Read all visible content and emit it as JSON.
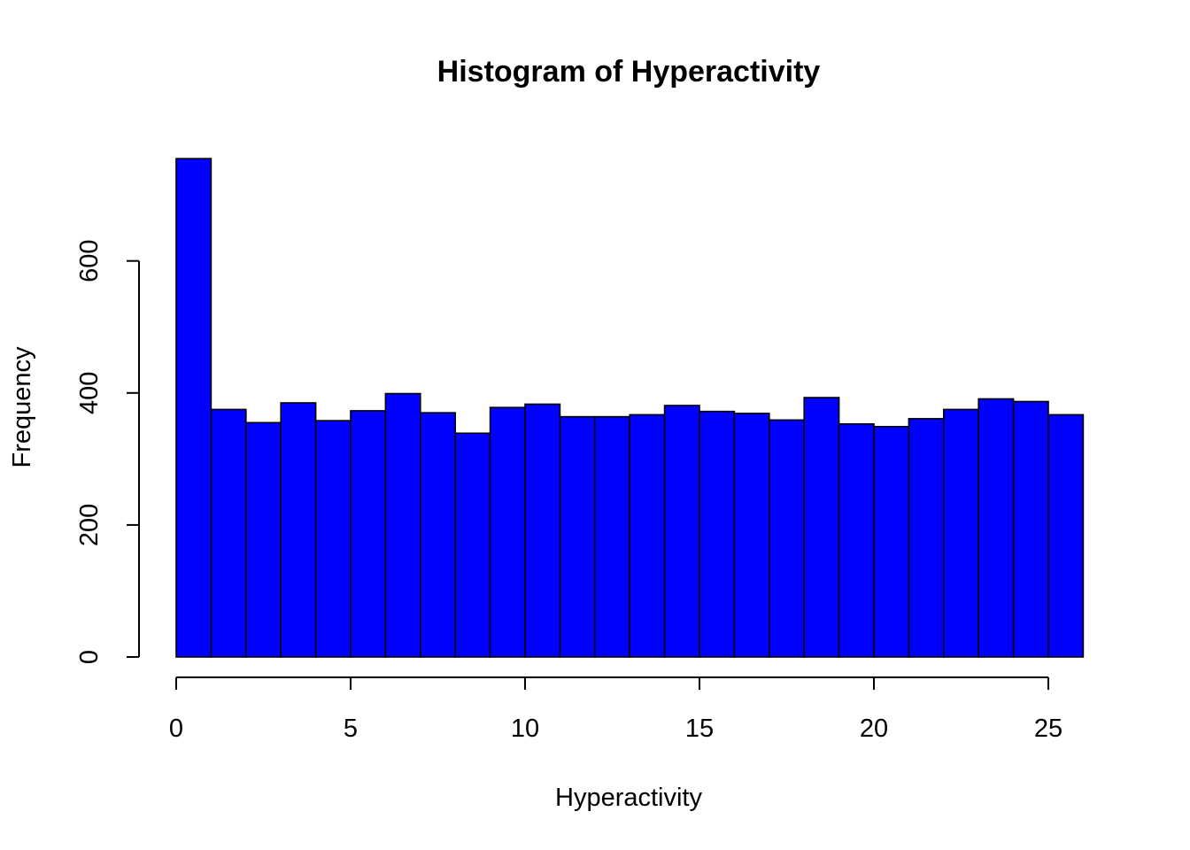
{
  "chart_data": {
    "type": "bar",
    "title": "Histogram of Hyperactivity",
    "xlabel": "Hyperactivity",
    "ylabel": "Frequency",
    "bar_color": "#0000ff",
    "bin_edges": [
      0,
      1,
      2,
      3,
      4,
      5,
      6,
      7,
      8,
      9,
      10,
      11,
      12,
      13,
      14,
      15,
      16,
      17,
      18,
      19,
      20,
      21,
      22,
      23,
      24,
      25,
      26
    ],
    "values": [
      755,
      375,
      355,
      385,
      358,
      373,
      399,
      370,
      339,
      378,
      383,
      364,
      364,
      367,
      381,
      372,
      369,
      359,
      393,
      353,
      349,
      361,
      375,
      391,
      387,
      367
    ],
    "xlim": [
      0,
      26
    ],
    "ylim": [
      0,
      755
    ],
    "x_ticks": [
      0,
      5,
      10,
      15,
      20,
      25
    ],
    "y_ticks": [
      0,
      200,
      400,
      600
    ],
    "grid": false,
    "legend": "none"
  }
}
